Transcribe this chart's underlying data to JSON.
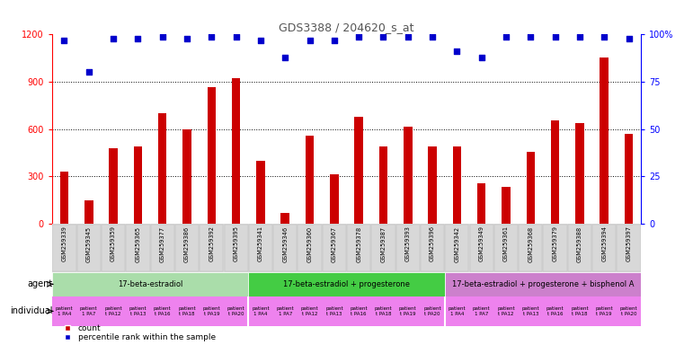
{
  "title": "GDS3388 / 204620_s_at",
  "gsm_labels": [
    "GSM259339",
    "GSM259345",
    "GSM259359",
    "GSM259365",
    "GSM259377",
    "GSM259386",
    "GSM259392",
    "GSM259395",
    "GSM259341",
    "GSM259346",
    "GSM259360",
    "GSM259367",
    "GSM259378",
    "GSM259387",
    "GSM259393",
    "GSM259396",
    "GSM259342",
    "GSM259349",
    "GSM259361",
    "GSM259368",
    "GSM259379",
    "GSM259388",
    "GSM259394",
    "GSM259397"
  ],
  "counts": [
    330,
    145,
    480,
    490,
    700,
    595,
    865,
    925,
    400,
    68,
    555,
    310,
    680,
    490,
    615,
    490,
    490,
    255,
    235,
    455,
    655,
    640,
    1055,
    570
  ],
  "percentiles": [
    97,
    80,
    98,
    98,
    99,
    98,
    99,
    99,
    97,
    88,
    97,
    97,
    99,
    99,
    99,
    99,
    91,
    88,
    99,
    99,
    99,
    99,
    99,
    98
  ],
  "bar_color": "#cc0000",
  "dot_color": "#0000cc",
  "ylim_left": [
    0,
    1200
  ],
  "ylim_right": [
    0,
    100
  ],
  "yticks_left": [
    0,
    300,
    600,
    900,
    1200
  ],
  "ytick_labels_left": [
    "0",
    "300",
    "600",
    "900",
    "1200"
  ],
  "yticks_right": [
    0,
    25,
    50,
    75,
    100
  ],
  "ytick_labels_right": [
    "0",
    "25",
    "50",
    "75",
    "100%"
  ],
  "agent_groups": [
    {
      "label": "17-beta-estradiol",
      "start": 0,
      "end": 8,
      "color": "#aaddaa"
    },
    {
      "label": "17-beta-estradiol + progesterone",
      "start": 8,
      "end": 16,
      "color": "#44cc44"
    },
    {
      "label": "17-beta-estradiol + progesterone + bisphenol A",
      "start": 16,
      "end": 24,
      "color": "#cc80cc"
    }
  ],
  "individual_labels": [
    "patient\n1 PA4",
    "patient\n1 PA7",
    "patient\nt\nPA12",
    "patient\nt\nPA13",
    "patient\nt\nPA16",
    "patient\nt\nPA18",
    "patient\nt\nPA19",
    "patient\nt\nPA20"
  ],
  "individual_color": "#ee82ee",
  "bg_color": "#ffffff",
  "xticklabel_bg": "#d8d8d8",
  "grid_color": "#000000",
  "title_color": "#555555",
  "legend_items": [
    {
      "label": "count",
      "color": "#cc0000"
    },
    {
      "label": "percentile rank within the sample",
      "color": "#0000cc"
    }
  ]
}
